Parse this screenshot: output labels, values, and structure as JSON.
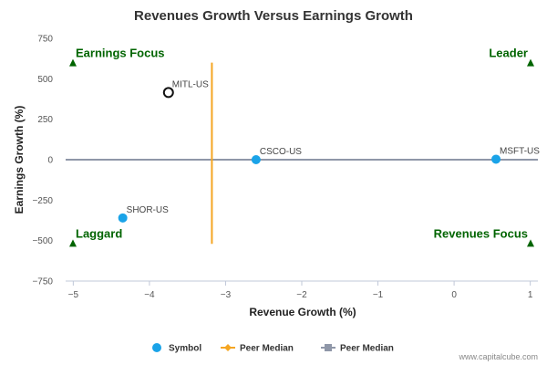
{
  "chart_data": {
    "type": "scatter",
    "title": "Revenues Growth Versus Earnings Growth",
    "xlabel": "Revenue Growth (%)",
    "ylabel": "Earnings Growth (%)",
    "xlim": [
      -5.1,
      1.1
    ],
    "ylim": [
      -750,
      750
    ],
    "xticks": [
      -5,
      -4,
      -3,
      -2,
      -1,
      0,
      1
    ],
    "yticks": [
      -750,
      -500,
      -250,
      0,
      250,
      500,
      750
    ],
    "grid": false,
    "points": [
      {
        "label": "MITL-US",
        "x": -3.75,
        "y": 415,
        "style": "hollow"
      },
      {
        "label": "CSCO-US",
        "x": -2.6,
        "y": 0,
        "style": "filled"
      },
      {
        "label": "MSFT-US",
        "x": 0.55,
        "y": 3,
        "style": "filled"
      },
      {
        "label": "SHOR-US",
        "x": -4.35,
        "y": -360,
        "style": "filled"
      }
    ],
    "peer_median": {
      "x": -3.18,
      "y": 0,
      "y_span": [
        -520,
        600
      ]
    },
    "quadrants": [
      {
        "label": "Earnings Focus",
        "x": -5.1,
        "y": 600,
        "align": "left"
      },
      {
        "label": "Leader",
        "x": 1.1,
        "y": 600,
        "align": "right"
      },
      {
        "label": "Laggard",
        "x": -5.1,
        "y": -515,
        "align": "left"
      },
      {
        "label": "Revenues Focus",
        "x": 1.1,
        "y": -515,
        "align": "right"
      }
    ],
    "legend": {
      "position": "bottom-center",
      "items": [
        {
          "label": "Symbol",
          "marker": "circle",
          "color": "#1aa3e8"
        },
        {
          "label": "Peer Median",
          "marker": "diamond-line",
          "color": "#f5a623"
        },
        {
          "label": "Peer Median",
          "marker": "square-line",
          "color": "#8f97a8"
        }
      ]
    },
    "colors": {
      "point": "#1aa3e8",
      "hollow_stroke": "#111111",
      "vertical_median": "#f5a623",
      "horizontal_median": "#8f97a8",
      "quadrant": "#006400"
    }
  },
  "footer": {
    "credit": "www.capitalcube.com"
  }
}
